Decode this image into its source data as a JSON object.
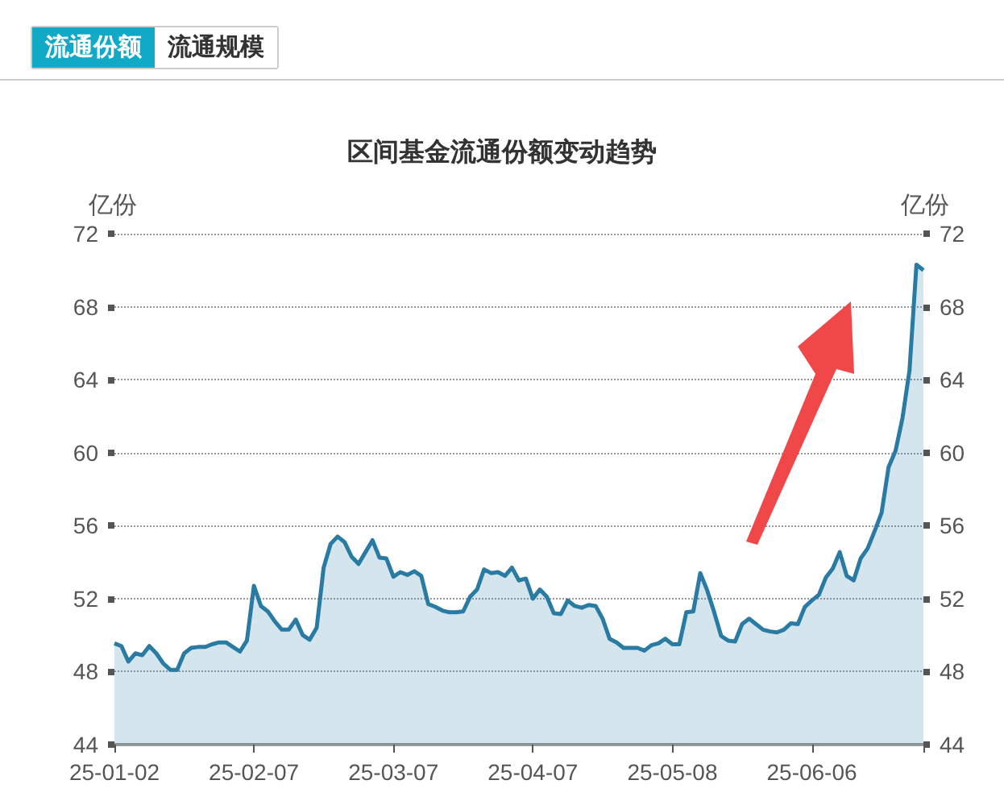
{
  "chart_data": {
    "type": "area",
    "title": "区间基金流通份额变动趋势",
    "ylabel": "亿份",
    "y2label": "亿份",
    "annotations": [
      "流通份额",
      "流通规模"
    ],
    "categories": [
      "25-01-02",
      null,
      null,
      null,
      null,
      null,
      null,
      null,
      null,
      null,
      null,
      null,
      null,
      null,
      null,
      null,
      null,
      null,
      null,
      null,
      "25-02-07",
      null,
      null,
      null,
      null,
      null,
      null,
      null,
      null,
      null,
      null,
      null,
      null,
      null,
      null,
      null,
      null,
      null,
      null,
      null,
      "25-03-07",
      null,
      null,
      null,
      null,
      null,
      null,
      null,
      null,
      null,
      null,
      null,
      null,
      null,
      null,
      null,
      null,
      null,
      null,
      null,
      "25-04-07",
      null,
      null,
      null,
      null,
      null,
      null,
      null,
      null,
      null,
      null,
      null,
      null,
      null,
      null,
      null,
      null,
      null,
      null,
      null,
      "25-05-08",
      null,
      null,
      null,
      null,
      null,
      null,
      null,
      null,
      null,
      null,
      null,
      null,
      null,
      null,
      null,
      null,
      null,
      null,
      null,
      "25-06-06",
      null,
      null,
      null,
      null,
      null,
      null,
      null,
      null,
      null,
      null,
      null,
      null,
      null,
      null,
      null,
      null
    ],
    "series": [
      {
        "color": "#2a7ba3",
        "values": [
          49.55,
          49.4,
          48.55,
          49.0,
          48.9,
          49.4,
          49.0,
          48.45,
          48.1,
          48.1,
          49.0,
          49.3,
          49.35,
          49.35,
          49.5,
          49.6,
          49.6,
          49.35,
          49.1,
          49.7,
          52.7,
          51.6,
          51.3,
          50.75,
          50.3,
          50.3,
          50.85,
          50.0,
          49.75,
          50.4,
          53.7,
          55.0,
          55.4,
          55.1,
          54.3,
          53.9,
          54.55,
          55.2,
          54.25,
          54.2,
          53.2,
          53.45,
          53.3,
          53.5,
          53.25,
          51.7,
          51.55,
          51.35,
          51.25,
          51.25,
          51.3,
          52.1,
          52.5,
          53.6,
          53.4,
          53.45,
          53.25,
          53.7,
          53.0,
          53.1,
          52.0,
          52.5,
          52.1,
          51.2,
          51.15,
          51.9,
          51.6,
          51.5,
          51.65,
          51.6,
          50.9,
          49.8,
          49.6,
          49.3,
          49.3,
          49.3,
          49.15,
          49.45,
          49.55,
          49.8,
          49.5,
          49.5,
          51.25,
          51.3,
          53.4,
          52.45,
          51.25,
          49.95,
          49.7,
          49.65,
          50.6,
          50.9,
          50.6,
          50.3,
          50.2,
          50.15,
          50.3,
          50.65,
          50.6,
          51.55,
          51.9,
          52.2,
          53.15,
          53.65,
          54.55,
          53.25,
          53.0,
          54.2,
          54.75,
          55.7,
          56.7,
          59.2,
          60.1,
          61.9,
          64.5,
          70.3,
          70.0
        ]
      }
    ],
    "ylim": [
      44,
      72
    ],
    "yticks": [
      44,
      48,
      52,
      56,
      60,
      64,
      68,
      72
    ],
    "y2lim": [
      44,
      72
    ],
    "y2ticks": [
      44,
      48,
      52,
      56,
      60,
      64,
      68,
      72
    ],
    "grid": "y",
    "marker": "none",
    "line_style": "solid"
  }
}
